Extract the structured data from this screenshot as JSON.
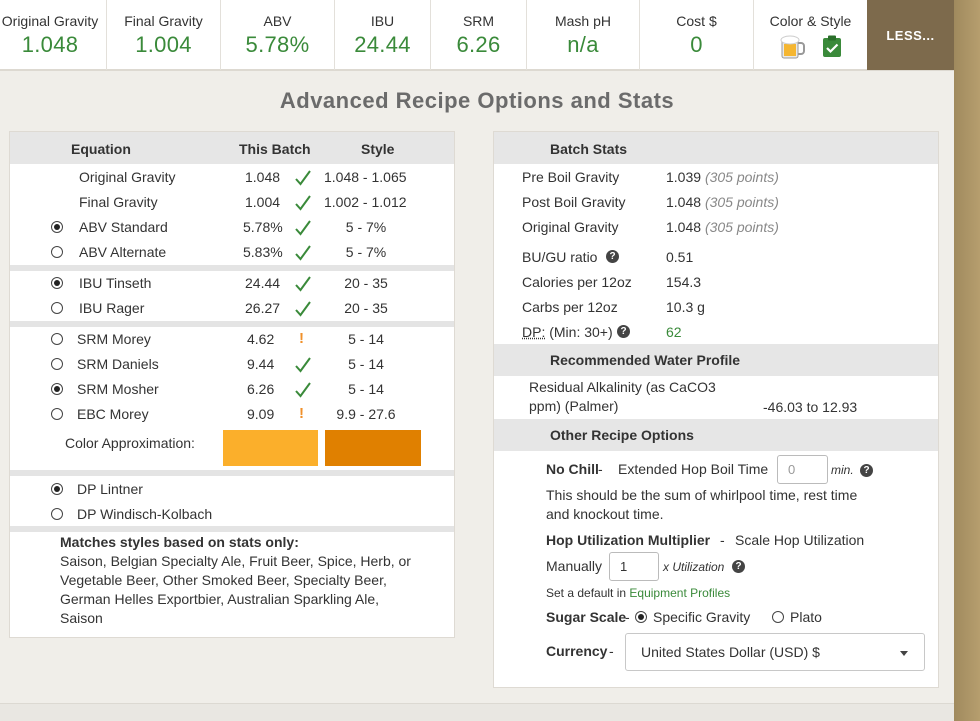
{
  "stats": [
    {
      "label": "Original Gravity",
      "value": "1.048"
    },
    {
      "label": "Final Gravity",
      "value": "1.004"
    },
    {
      "label": "ABV",
      "value": "5.78%"
    },
    {
      "label": "IBU",
      "value": "24.44"
    },
    {
      "label": "SRM",
      "value": "6.26"
    },
    {
      "label": "Mash pH",
      "value": "n/a"
    },
    {
      "label": "Cost $",
      "value": "0"
    }
  ],
  "color_style_label": "Color & Style",
  "less_button": "LESS...",
  "page_title": "Advanced Recipe Options and Stats",
  "left": {
    "headers": {
      "equation": "Equation",
      "this_batch": "This Batch",
      "style": "Style"
    },
    "gravity_rows": [
      {
        "name": "Original Gravity",
        "batch": "1.048",
        "style": "1.048 - 1.065"
      },
      {
        "name": "Final Gravity",
        "batch": "1.004",
        "style": "1.002 - 1.012"
      }
    ],
    "abv_rows": [
      {
        "name": "ABV Standard",
        "batch": "5.78%",
        "style": "5 - 7%",
        "selected": true
      },
      {
        "name": "ABV Alternate",
        "batch": "5.83%",
        "style": "5 - 7%",
        "selected": false
      }
    ],
    "ibu_rows": [
      {
        "name": "IBU Tinseth",
        "batch": "24.44",
        "style": "20 - 35",
        "selected": true
      },
      {
        "name": "IBU Rager",
        "batch": "26.27",
        "style": "20 - 35",
        "selected": false
      }
    ],
    "srm_rows": [
      {
        "name": "SRM Morey",
        "batch": "4.62",
        "style": "5 - 14",
        "selected": false,
        "status": "warn"
      },
      {
        "name": "SRM Daniels",
        "batch": "9.44",
        "style": "5 - 14",
        "selected": false,
        "status": "ok"
      },
      {
        "name": "SRM Mosher",
        "batch": "6.26",
        "style": "5 - 14",
        "selected": true,
        "status": "ok"
      },
      {
        "name": "EBC Morey",
        "batch": "9.09",
        "style": "9.9 - 27.6",
        "selected": false,
        "status": "warn"
      }
    ],
    "color_approx_label": "Color Approximation:",
    "color_batch": "#fbaf2b",
    "color_style": "#e08000",
    "dp_rows": [
      {
        "name": "DP Lintner",
        "selected": true
      },
      {
        "name": "DP Windisch-Kolbach",
        "selected": false
      }
    ],
    "matches_title": "Matches styles based on stats only:",
    "matches_lines": [
      "Saison, Belgian Specialty Ale, Fruit Beer, Spice, Herb, or",
      "Vegetable Beer, Other Smoked Beer, Specialty Beer,",
      "German Helles Exportbier, Australian Sparkling Ale,",
      "Saison"
    ]
  },
  "right": {
    "batch_stats_title": "Batch Stats",
    "gravity_stats": [
      {
        "label": "Pre Boil Gravity",
        "value": "1.039",
        "note": "(305 points)"
      },
      {
        "label": "Post Boil Gravity",
        "value": "1.048",
        "note": "(305 points)"
      },
      {
        "label": "Original Gravity",
        "value": "1.048",
        "note": "(305 points)"
      }
    ],
    "bugu_label": "BU/GU ratio",
    "bugu_value": "0.51",
    "calories_label": "Calories per 12oz",
    "calories_value": "154.3",
    "carbs_label": "Carbs per 12oz",
    "carbs_value": "10.3 g",
    "dp_abbr": "DP:",
    "dp_label_rest": "(Min: 30+)",
    "dp_value": "62",
    "water_title": "Recommended Water Profile",
    "ra_line1": "Residual Alkalinity (as CaCO3",
    "ra_line2": "ppm) (Palmer)",
    "ra_value": "-46.03 to 12.93",
    "other_title": "Other Recipe Options",
    "no_chill_label": "No Chill",
    "no_chill_dash": "-",
    "ext_hop_label": "Extended Hop Boil Time",
    "ext_hop_placeholder": "0",
    "min_label": "min.",
    "no_chill_help1": "This should be the sum of whirlpool time, rest time",
    "no_chill_help2": "and knockout time.",
    "hop_util_label": "Hop Utilization Multiplier",
    "hop_util_dash": "-",
    "scale_hop_label": "Scale Hop Utilization",
    "manually_label": "Manually",
    "hop_util_value": "1",
    "x_util_label": "x Utilization",
    "default_prefix": "Set a default in",
    "equipment_link": "Equipment Profiles",
    "sugar_label": "Sugar Scale",
    "sugar_dash": "-",
    "sugar_options": [
      {
        "label": "Specific Gravity",
        "selected": true
      },
      {
        "label": "Plato",
        "selected": false
      }
    ],
    "currency_label": "Currency",
    "currency_dash": "-",
    "currency_value": "United States Dollar (USD) $"
  }
}
